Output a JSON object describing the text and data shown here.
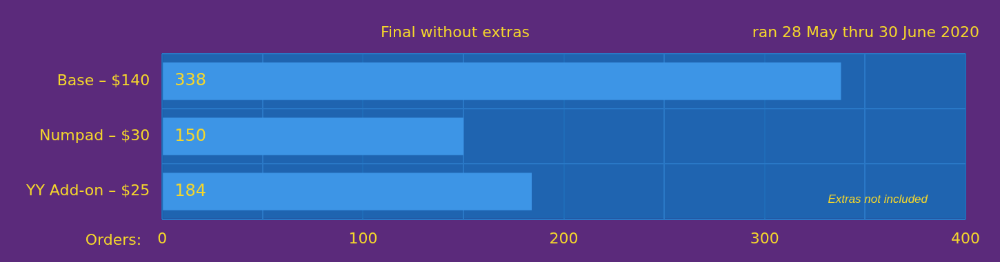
{
  "chart_data": {
    "type": "bar",
    "orientation": "horizontal",
    "title": "Final without extras",
    "subtitle": "ran 28 May thru 30 June 2020",
    "xlabel": "Orders:",
    "categories": [
      "Base – $140",
      "Numpad – $30",
      "YY Add-on – $25"
    ],
    "values": [
      338,
      150,
      184
    ],
    "color": "#3d95e6",
    "xlim": [
      0,
      400
    ],
    "xticks": [
      0,
      {
        "value": 50,
        "label": null
      },
      100,
      {
        "value": 150,
        "label": null
      },
      200,
      {
        "value": 250,
        "label": null
      },
      300,
      {
        "value": 350,
        "label": null
      },
      400
    ],
    "grid": true,
    "data_labels": true,
    "legend": false,
    "annotations": [
      "Extras not included"
    ]
  }
}
